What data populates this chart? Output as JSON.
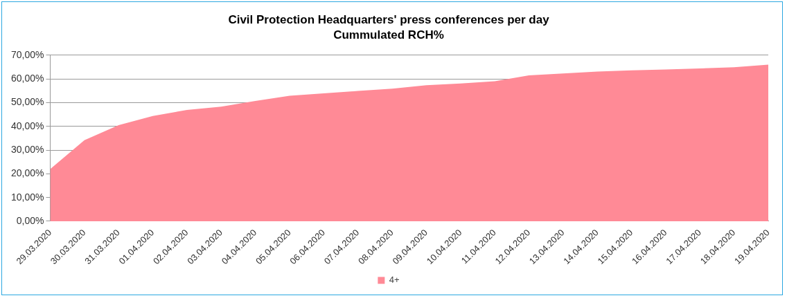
{
  "chart_data": {
    "type": "area",
    "title": "Civil Protection Headquarters' press conferences per day",
    "subtitle": "Cummulated RCH%",
    "categories": [
      "29.03.2020",
      "30.03.2020",
      "31.03.2020",
      "01.04.2020",
      "02.04.2020",
      "03.04.2020",
      "04.04.2020",
      "05.04.2020",
      "06.04.2020",
      "07.04.2020",
      "08.04.2020",
      "09.04.2020",
      "10.04.2020",
      "11.04.2020",
      "12.04.2020",
      "13.04.2020",
      "14.04.2020",
      "15.04.2020",
      "16.04.2020",
      "17.04.2020",
      "18.04.2020",
      "19.04.2020"
    ],
    "series": [
      {
        "name": "4+",
        "color": "#ff8a96",
        "values": [
          22.0,
          34.2,
          40.5,
          44.4,
          46.9,
          48.3,
          50.7,
          52.9,
          53.9,
          54.9,
          55.9,
          57.3,
          58.1,
          59.0,
          61.5,
          62.3,
          63.1,
          63.6,
          64.0,
          64.4,
          64.9,
          66.0
        ]
      }
    ],
    "ylim": [
      0,
      70
    ],
    "yticks": [
      {
        "value": 0,
        "label": "0,00%"
      },
      {
        "value": 10,
        "label": "10,00%"
      },
      {
        "value": 20,
        "label": "20,00%"
      },
      {
        "value": 30,
        "label": "30,00%"
      },
      {
        "value": 40,
        "label": "40,00%"
      },
      {
        "value": 50,
        "label": "50,00%"
      },
      {
        "value": 60,
        "label": "60,00%"
      },
      {
        "value": 70,
        "label": "70,00%"
      }
    ],
    "grid": "y",
    "legend": "bottom"
  }
}
